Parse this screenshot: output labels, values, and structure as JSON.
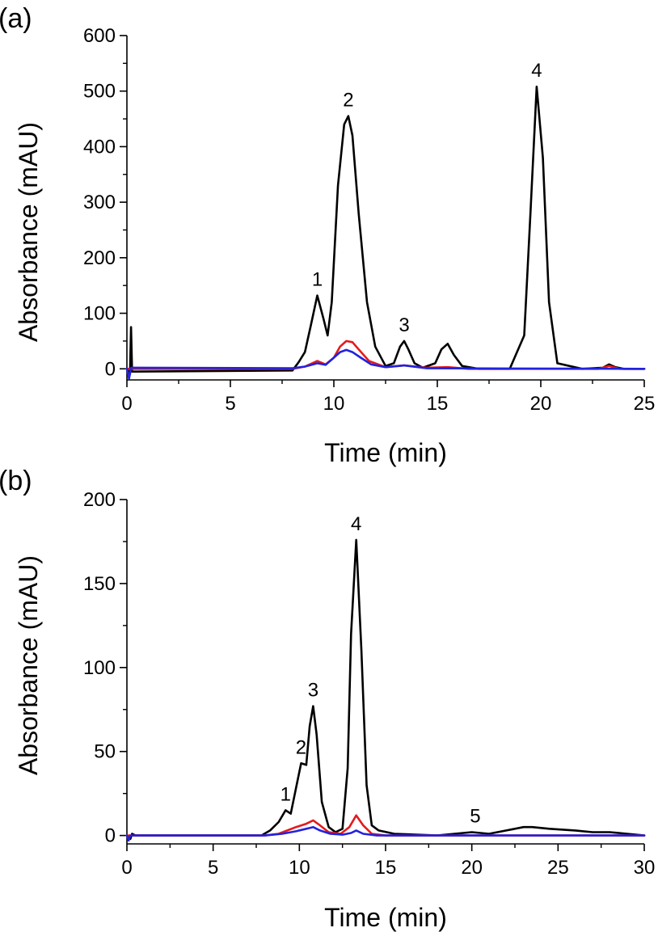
{
  "chart_data": [
    {
      "panel": "(a)",
      "type": "line",
      "xlabel": "Time (min)",
      "ylabel": "Absorbance (mAU)",
      "xlim": [
        0,
        25
      ],
      "ylim": [
        -20,
        600
      ],
      "xticks": [
        0,
        5,
        10,
        15,
        20,
        25
      ],
      "yticks": [
        0,
        100,
        200,
        300,
        400,
        500,
        600
      ],
      "peak_labels": [
        {
          "text": "1",
          "x": 9.2,
          "y": 132
        },
        {
          "text": "2",
          "x": 10.7,
          "y": 455
        },
        {
          "text": "3",
          "x": 13.4,
          "y": 50
        },
        {
          "text": "4",
          "x": 19.8,
          "y": 508
        }
      ],
      "series": [
        {
          "name": "black",
          "color": "#000000",
          "x": [
            0,
            0.15,
            0.2,
            0.25,
            0.4,
            8,
            8.3,
            8.6,
            8.9,
            9.2,
            9.5,
            9.7,
            9.9,
            10.2,
            10.5,
            10.7,
            10.9,
            11.2,
            11.6,
            12,
            12.5,
            12.9,
            13.2,
            13.4,
            13.6,
            13.9,
            14.3,
            14.9,
            15.2,
            15.5,
            15.8,
            16.2,
            17,
            18.5,
            19.2,
            19.5,
            19.8,
            20.1,
            20.4,
            20.8,
            22,
            23,
            23.3,
            23.6,
            24,
            25
          ],
          "y": [
            0,
            -10,
            75,
            -5,
            -5,
            -3,
            12,
            30,
            80,
            132,
            90,
            60,
            120,
            330,
            440,
            455,
            420,
            280,
            120,
            40,
            5,
            10,
            40,
            50,
            35,
            10,
            2,
            10,
            35,
            45,
            25,
            5,
            0,
            0,
            60,
            280,
            508,
            380,
            120,
            10,
            0,
            2,
            8,
            3,
            0,
            0
          ]
        },
        {
          "name": "red",
          "color": "#e41a1c",
          "x": [
            0,
            8,
            8.6,
            9.2,
            9.6,
            10,
            10.3,
            10.6,
            10.9,
            11.2,
            11.7,
            12.5,
            13.4,
            14.5,
            15.5,
            16.5,
            22.8,
            23.3,
            23.8,
            25
          ],
          "y": [
            0,
            0,
            4,
            14,
            8,
            20,
            40,
            50,
            48,
            35,
            14,
            3,
            6,
            2,
            3,
            0,
            0,
            5,
            0,
            0
          ]
        },
        {
          "name": "blue",
          "color": "#2222dd",
          "x": [
            0,
            0.1,
            0.2,
            0.4,
            8,
            8.6,
            9.2,
            9.6,
            10,
            10.3,
            10.6,
            10.9,
            11.3,
            11.8,
            12.5,
            13.4,
            14.5,
            25
          ],
          "y": [
            0,
            -18,
            2,
            2,
            1,
            4,
            10,
            7,
            20,
            30,
            34,
            30,
            20,
            8,
            3,
            6,
            1,
            0
          ]
        }
      ]
    },
    {
      "panel": "(b)",
      "type": "line",
      "xlabel": "Time (min)",
      "ylabel": "Absorbance (mAU)",
      "xlim": [
        0,
        30
      ],
      "ylim": [
        -5,
        200
      ],
      "xticks": [
        0,
        5,
        10,
        15,
        20,
        25,
        30
      ],
      "yticks": [
        0,
        50,
        100,
        150,
        200
      ],
      "peak_labels": [
        {
          "text": "1",
          "x": 9.2,
          "y": 15
        },
        {
          "text": "2",
          "x": 10.1,
          "y": 43
        },
        {
          "text": "3",
          "x": 10.8,
          "y": 77
        },
        {
          "text": "4",
          "x": 13.3,
          "y": 176
        },
        {
          "text": "5",
          "x": 20.2,
          "y": 2
        }
      ],
      "series": [
        {
          "name": "black",
          "color": "#000000",
          "x": [
            0,
            0.2,
            0.3,
            0.5,
            7.8,
            8.3,
            8.8,
            9.2,
            9.5,
            9.8,
            10.1,
            10.4,
            10.6,
            10.8,
            11.0,
            11.3,
            11.7,
            12.1,
            12.5,
            12.8,
            13.0,
            13.3,
            13.6,
            13.9,
            14.2,
            14.6,
            15.5,
            18,
            20,
            21,
            22,
            23,
            23.5,
            24.5,
            26,
            27,
            28,
            29,
            30
          ],
          "y": [
            0,
            -2,
            1,
            0,
            0,
            3,
            8,
            15,
            13,
            28,
            43,
            42,
            65,
            77,
            60,
            20,
            5,
            2,
            4,
            40,
            120,
            176,
            110,
            30,
            6,
            3,
            1,
            0,
            2,
            1,
            3,
            5,
            5,
            4,
            3,
            2,
            2,
            1,
            0
          ]
        },
        {
          "name": "red",
          "color": "#e41a1c",
          "x": [
            0,
            8,
            8.8,
            9.3,
            9.8,
            10.4,
            10.8,
            11.2,
            11.7,
            12.4,
            12.9,
            13.3,
            13.7,
            14.2,
            15,
            30
          ],
          "y": [
            0,
            0,
            1,
            3,
            5,
            7,
            9,
            6,
            2,
            1,
            5,
            12,
            6,
            1,
            0,
            0
          ]
        },
        {
          "name": "blue",
          "color": "#2222dd",
          "x": [
            0,
            0.1,
            0.2,
            0.4,
            8,
            9,
            9.8,
            10.4,
            10.8,
            11.2,
            11.8,
            12.5,
            13,
            13.3,
            13.7,
            14.5,
            30
          ],
          "y": [
            0,
            -3,
            0,
            0,
            0,
            1,
            2.5,
            4,
            5,
            3,
            1,
            0.5,
            1.5,
            3,
            1,
            0,
            0
          ]
        }
      ]
    }
  ]
}
